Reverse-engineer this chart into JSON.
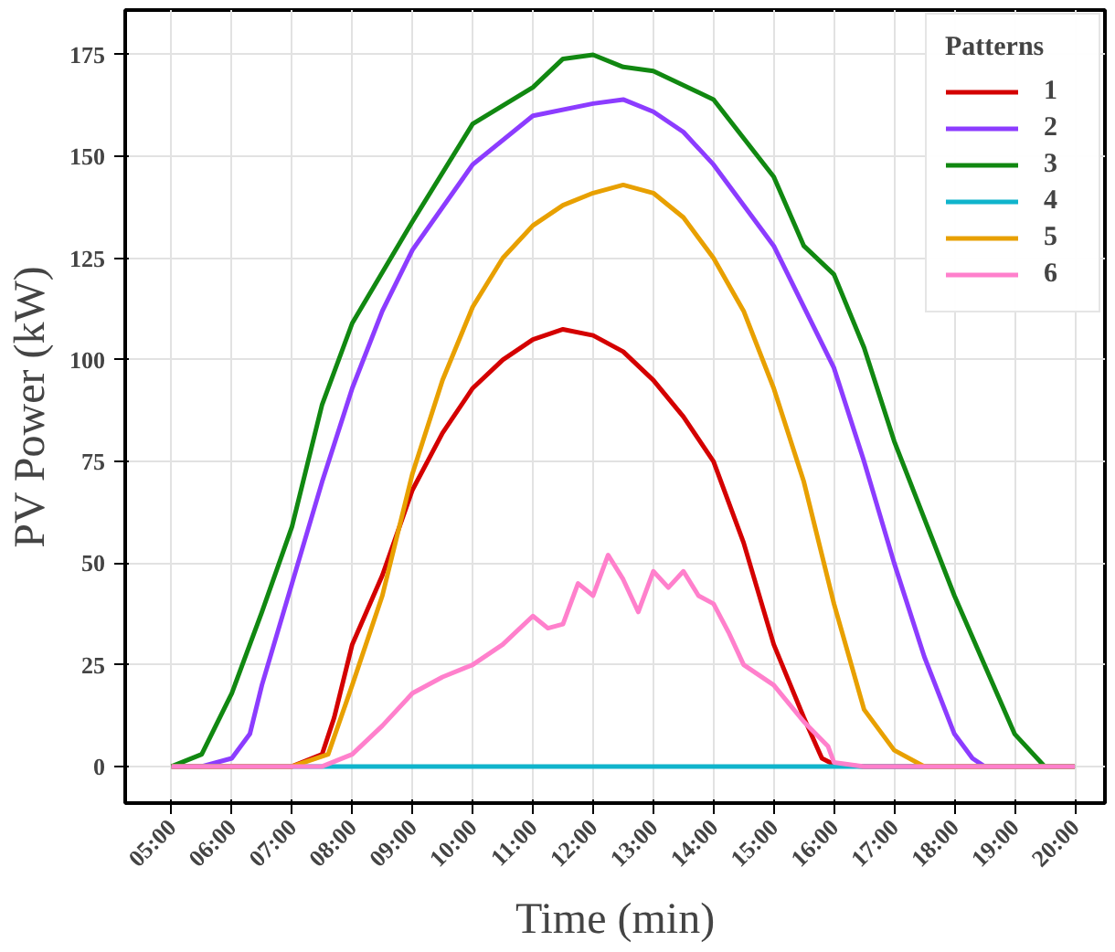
{
  "chart_data": {
    "type": "line",
    "xlabel": "Time (min)",
    "ylabel": "PV Power (kW)",
    "legend_title": "Patterns",
    "legend": "top right",
    "grid": true,
    "line_style": "solid",
    "marker": "none",
    "xlim": [
      4.23,
      20.5
    ],
    "ylim": [
      -9,
      186
    ],
    "xticks": [
      {
        "value": 5,
        "label": "05:00"
      },
      {
        "value": 6,
        "label": "06:00"
      },
      {
        "value": 7,
        "label": "07:00"
      },
      {
        "value": 8,
        "label": "08:00"
      },
      {
        "value": 9,
        "label": "09:00"
      },
      {
        "value": 10,
        "label": "10:00"
      },
      {
        "value": 11,
        "label": "11:00"
      },
      {
        "value": 12,
        "label": "12:00"
      },
      {
        "value": 13,
        "label": "13:00"
      },
      {
        "value": 14,
        "label": "14:00"
      },
      {
        "value": 15,
        "label": "15:00"
      },
      {
        "value": 16,
        "label": "16:00"
      },
      {
        "value": 17,
        "label": "17:00"
      },
      {
        "value": 18,
        "label": "18:00"
      },
      {
        "value": 19,
        "label": "19:00"
      },
      {
        "value": 20,
        "label": "20:00"
      }
    ],
    "yticks": [
      0,
      25,
      50,
      75,
      100,
      125,
      150,
      175
    ],
    "series": [
      {
        "name": "1",
        "color": "#d40000",
        "x": [
          5,
          7,
          7.5,
          7.7,
          8,
          8.5,
          9,
          9.5,
          10,
          10.5,
          11,
          11.5,
          12,
          12.5,
          13,
          13.5,
          14,
          14.5,
          15,
          15.5,
          15.8,
          16,
          16.5,
          20
        ],
        "values": [
          0,
          0,
          3,
          12,
          30,
          47,
          68,
          82,
          93,
          100,
          105,
          107.5,
          106,
          102,
          95,
          86,
          75,
          55,
          30,
          12,
          2,
          0.5,
          0,
          0
        ]
      },
      {
        "name": "2",
        "color": "#8c3cff",
        "x": [
          5,
          5.5,
          6,
          6.3,
          6.5,
          7,
          7.5,
          8,
          8.5,
          9,
          10,
          11,
          12,
          12.5,
          13,
          13.5,
          14,
          15,
          16,
          16.5,
          17,
          17.5,
          18,
          18.3,
          18.5,
          20
        ],
        "values": [
          0,
          0,
          2,
          8,
          20,
          45,
          70,
          93,
          112,
          127,
          148,
          160,
          163,
          164,
          161,
          156,
          148,
          128,
          98,
          75,
          50,
          27,
          8,
          2,
          0,
          0
        ]
      },
      {
        "name": "3",
        "color": "#118811",
        "x": [
          5,
          5.5,
          6,
          6.5,
          7,
          7.5,
          8,
          9,
          10,
          11,
          11.5,
          12,
          12.5,
          13,
          14,
          15,
          15.5,
          16,
          16.5,
          17,
          18,
          18.5,
          19,
          19.5,
          20
        ],
        "values": [
          0,
          3,
          18,
          38,
          59,
          89,
          109,
          134,
          158,
          167,
          174,
          175,
          172,
          171,
          164,
          145,
          128,
          121,
          103,
          80,
          42,
          25,
          8,
          0,
          0
        ]
      },
      {
        "name": "4",
        "color": "#10b4cc",
        "x": [
          5,
          20
        ],
        "values": [
          0,
          0
        ]
      },
      {
        "name": "5",
        "color": "#e8a000",
        "x": [
          5,
          7,
          7.6,
          8,
          8.5,
          9,
          9.5,
          10,
          10.5,
          11,
          11.5,
          12,
          12.5,
          13,
          13.5,
          14,
          14.5,
          15,
          15.5,
          16,
          16.5,
          17,
          17.5,
          20
        ],
        "values": [
          0,
          0,
          3,
          20,
          42,
          72,
          95,
          113,
          125,
          133,
          138,
          141,
          143,
          141,
          135,
          125,
          112,
          93,
          70,
          40,
          14,
          4,
          0,
          0
        ]
      },
      {
        "name": "6",
        "color": "#ff80cc",
        "x": [
          5,
          7.5,
          8,
          8.5,
          9,
          9.5,
          10,
          10.5,
          11,
          11.25,
          11.5,
          11.75,
          12,
          12.25,
          12.5,
          12.75,
          13,
          13.25,
          13.5,
          13.75,
          14,
          14.25,
          14.5,
          15,
          15.5,
          15.9,
          16,
          16.5,
          20
        ],
        "values": [
          0,
          0,
          3,
          10,
          18,
          22,
          25,
          30,
          37,
          34,
          35,
          45,
          42,
          52,
          46,
          38,
          48,
          44,
          48,
          42,
          40,
          33,
          25,
          20,
          11,
          5,
          1,
          0,
          0
        ]
      }
    ]
  }
}
